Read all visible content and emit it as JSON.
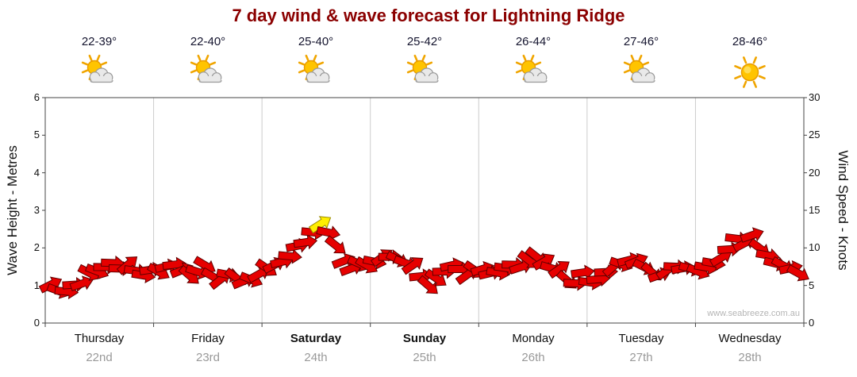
{
  "title": "7 day wind & wave forecast for Lightning Ridge",
  "watermark": "www.seabreeze.com.au",
  "days": [
    {
      "temp": "22-39°",
      "name": "Thursday",
      "date": "22nd",
      "icon": "sun-cloud",
      "bold": false
    },
    {
      "temp": "22-40°",
      "name": "Friday",
      "date": "23rd",
      "icon": "sun-cloud",
      "bold": false
    },
    {
      "temp": "25-40°",
      "name": "Saturday",
      "date": "24th",
      "icon": "sun-cloud",
      "bold": true
    },
    {
      "temp": "25-42°",
      "name": "Sunday",
      "date": "25th",
      "icon": "sun-cloud",
      "bold": true
    },
    {
      "temp": "26-44°",
      "name": "Monday",
      "date": "26th",
      "icon": "sun-cloud",
      "bold": false
    },
    {
      "temp": "27-46°",
      "name": "Tuesday",
      "date": "27th",
      "icon": "sun-cloud",
      "bold": false
    },
    {
      "temp": "28-46°",
      "name": "Wednesday",
      "date": "28th",
      "icon": "sun",
      "bold": false
    }
  ],
  "axes": {
    "left_title": "Wave Height - Metres",
    "right_title": "Wind Speed - Knots",
    "left_ticks": [
      "0",
      "1",
      "2",
      "3",
      "4",
      "5",
      "6"
    ],
    "right_ticks": [
      "0",
      "5",
      "10",
      "15",
      "20",
      "25",
      "30"
    ]
  },
  "chart_data": {
    "type": "wind-arrows",
    "title": "7 day wind & wave forecast for Lightning Ridge",
    "x_categories": [
      "Thursday 22nd",
      "Friday 23rd",
      "Saturday 24th",
      "Sunday 25th",
      "Monday 26th",
      "Tuesday 27th",
      "Wednesday 28th"
    ],
    "points_per_day": 14,
    "wind_knots": [
      5,
      4.5,
      4,
      5,
      5.5,
      6.5,
      7,
      7.5,
      8,
      7.5,
      8,
      7,
      6.5,
      7,
      7,
      7.5,
      8,
      7,
      6.5,
      7,
      7.5,
      6.5,
      6,
      6.5,
      6,
      5.5,
      6,
      6.5,
      7,
      7.5,
      8,
      9,
      10,
      11,
      12,
      13.5,
      12,
      10,
      8,
      7.5,
      8,
      7.5,
      8,
      8.5,
      9,
      8.5,
      8,
      7.5,
      6.5,
      5,
      6,
      7,
      7.5,
      7,
      6.5,
      7,
      7,
      6.5,
      7,
      7.5,
      8,
      7.5,
      8.5,
      9,
      8,
      7.5,
      7,
      6,
      5,
      6.5,
      5.5,
      6,
      7,
      7.5,
      8,
      8.5,
      8,
      7.5,
      7,
      6.5,
      7,
      7.5,
      7,
      7.5,
      7,
      7.5,
      8,
      9,
      10,
      11,
      10.5,
      11.5,
      10,
      9,
      8,
      7.5,
      7,
      6.5
    ],
    "highlight_index": 35,
    "arrow_color": "#e60000",
    "arrow_stroke": "#600000",
    "highlight_color": "#ffee00",
    "highlight_stroke": "#9a8a00",
    "ylim_knots": [
      0,
      30
    ],
    "ylim_metres": [
      0,
      6
    ],
    "grid": "vertical-day-separators",
    "legend": "none"
  }
}
